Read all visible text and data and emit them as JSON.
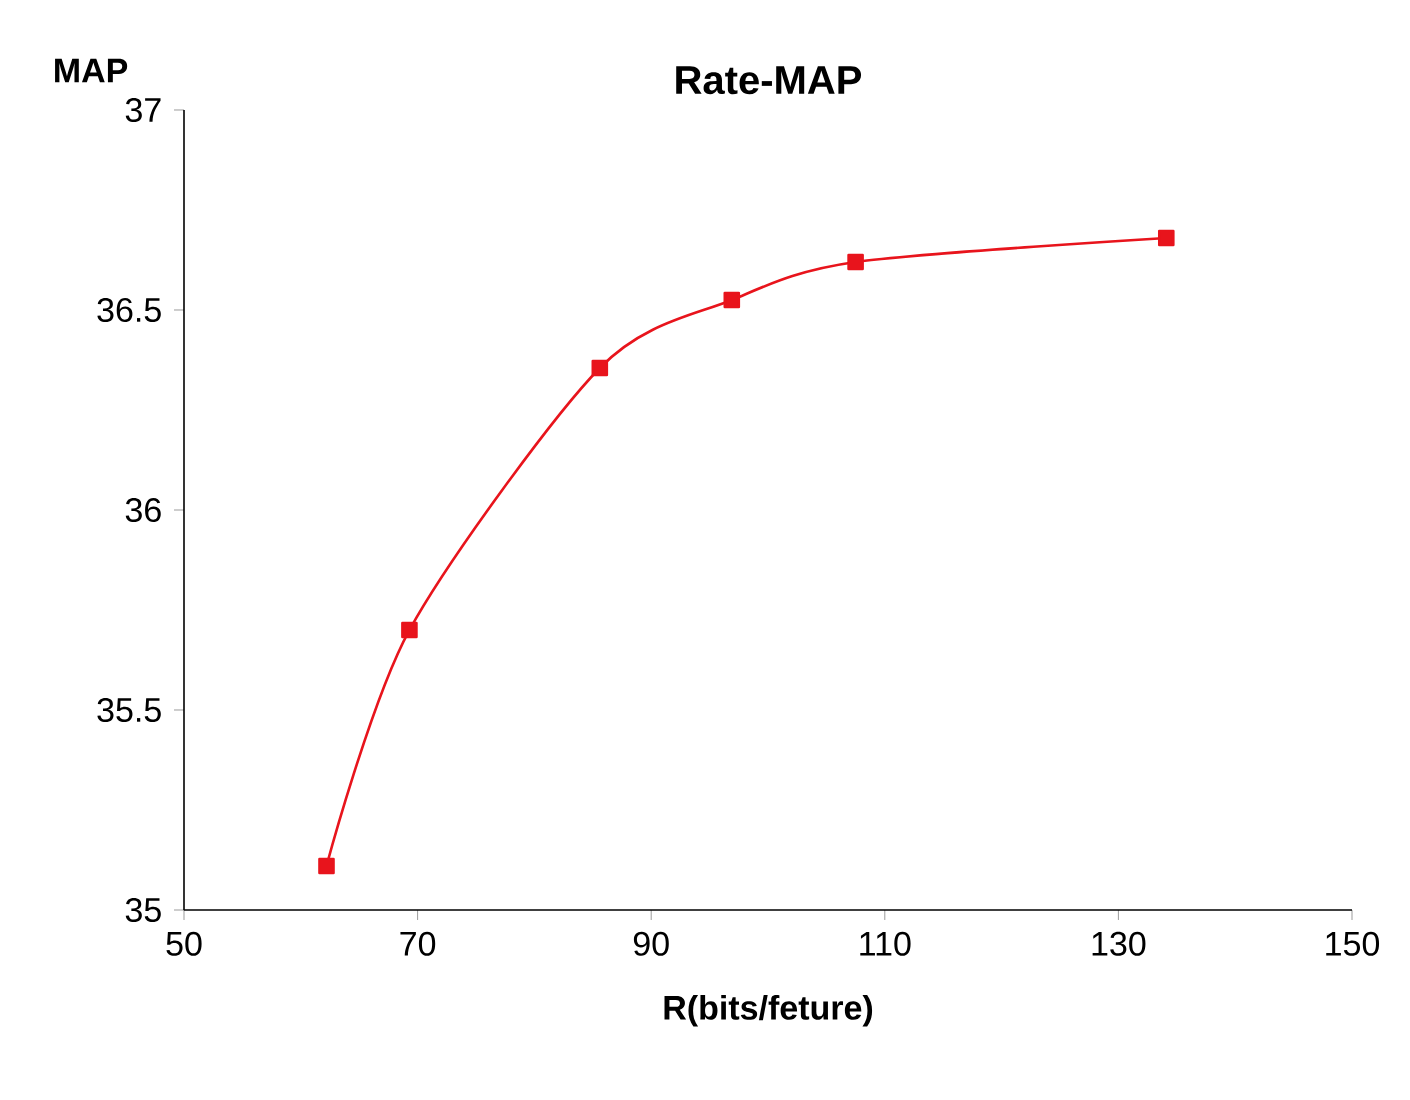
{
  "chart_data": {
    "type": "line",
    "title": "Rate-MAP",
    "xlabel": "R(bits/feture)",
    "ylabel": "MAP",
    "x": [
      62.2,
      69.3,
      85.6,
      96.9,
      107.5,
      134.1
    ],
    "series": [
      {
        "color": "#e8141c",
        "values": [
          35.11,
          35.7,
          36.355,
          36.525,
          36.62,
          36.68
        ]
      }
    ],
    "xlim": [
      50,
      150
    ],
    "xticks": [
      50,
      70,
      90,
      110,
      130,
      150
    ],
    "ylim": [
      35,
      37
    ],
    "yticks": [
      35,
      35.5,
      36,
      36.5,
      37
    ],
    "marker": "square",
    "line_style": "solid"
  }
}
